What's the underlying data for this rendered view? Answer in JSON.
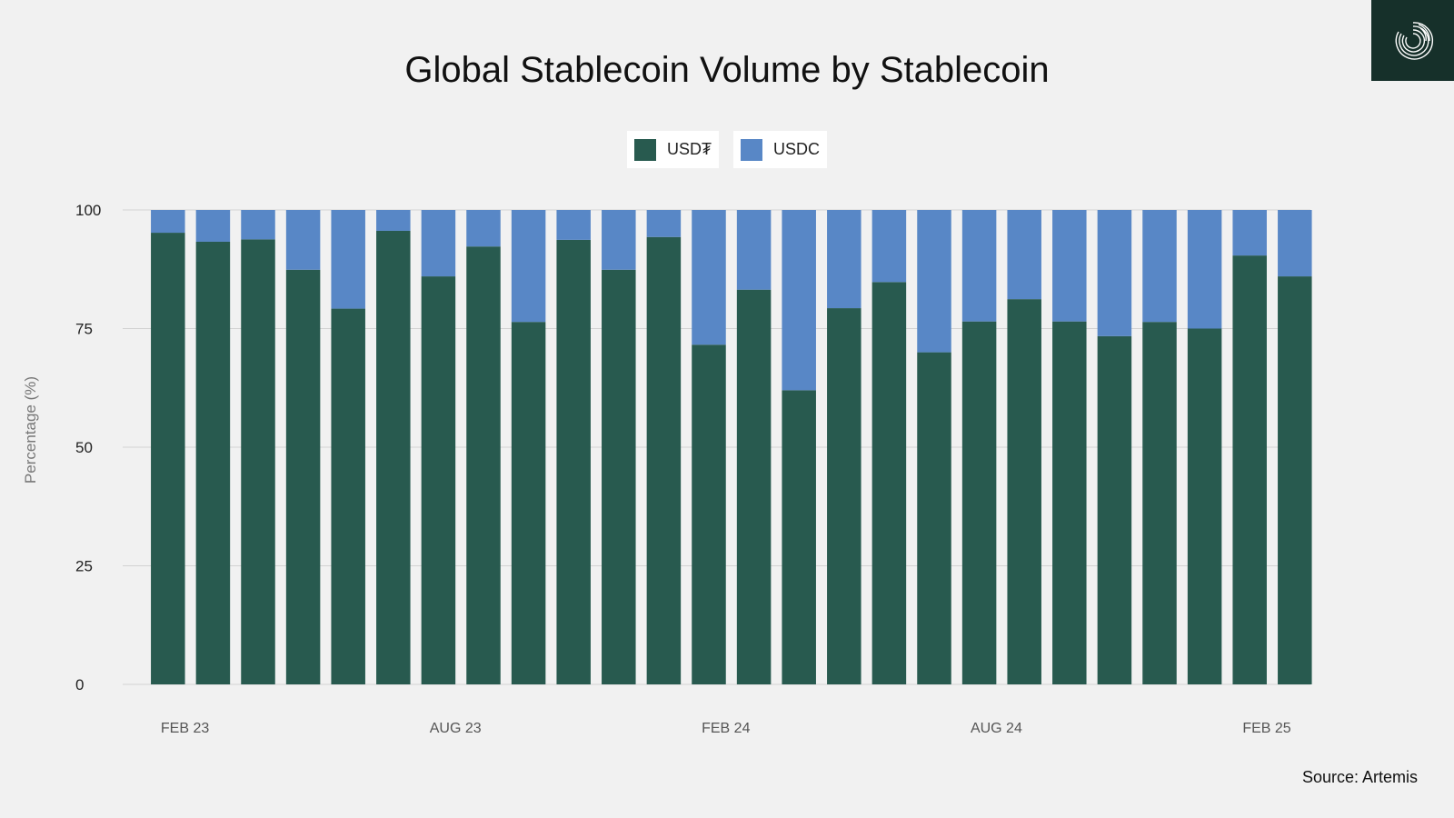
{
  "brand": {
    "logo_icon": "spiral-logo-icon",
    "logo_bg": "#16302a"
  },
  "source": "Source: Artemis",
  "chart_data": {
    "type": "bar",
    "stacked": true,
    "title": "Global Stablecoin Volume by Stablecoin",
    "xlabel": "",
    "ylabel": "Percentage (%)",
    "ylim": [
      0,
      100
    ],
    "yticks": [
      0,
      25,
      50,
      75,
      100
    ],
    "xtick_labels": [
      {
        "label": "FEB 23",
        "index": 0.5
      },
      {
        "label": "AUG 23",
        "index": 6.5
      },
      {
        "label": "FEB 24",
        "index": 12.5
      },
      {
        "label": "AUG 24",
        "index": 18.5
      },
      {
        "label": "FEB 25",
        "index": 24.5
      }
    ],
    "grid": true,
    "legend_position": "top-center",
    "categories": [
      "1",
      "2",
      "3",
      "4",
      "5",
      "6",
      "7",
      "8",
      "9",
      "10",
      "11",
      "12",
      "13",
      "14",
      "15",
      "16",
      "17",
      "18",
      "19",
      "20",
      "21",
      "22",
      "23",
      "24",
      "25",
      "26"
    ],
    "series": [
      {
        "name": "USD₮",
        "color": "#285a4f",
        "values": [
          95.2,
          93.3,
          93.8,
          87.4,
          79.2,
          95.6,
          86.0,
          92.3,
          76.4,
          93.7,
          87.4,
          94.3,
          71.6,
          83.2,
          62.0,
          79.3,
          84.8,
          70.0,
          76.5,
          81.2,
          76.5,
          73.4,
          76.4,
          75.0,
          90.4,
          86.0
        ]
      },
      {
        "name": "USDC",
        "color": "#5887c6",
        "values": [
          4.8,
          6.7,
          6.2,
          12.6,
          20.8,
          4.4,
          14.0,
          7.7,
          23.6,
          6.3,
          12.6,
          5.7,
          28.4,
          16.8,
          38.0,
          20.7,
          15.2,
          30.0,
          23.5,
          18.8,
          23.5,
          26.6,
          23.6,
          25.0,
          9.6,
          14.0
        ]
      }
    ]
  }
}
